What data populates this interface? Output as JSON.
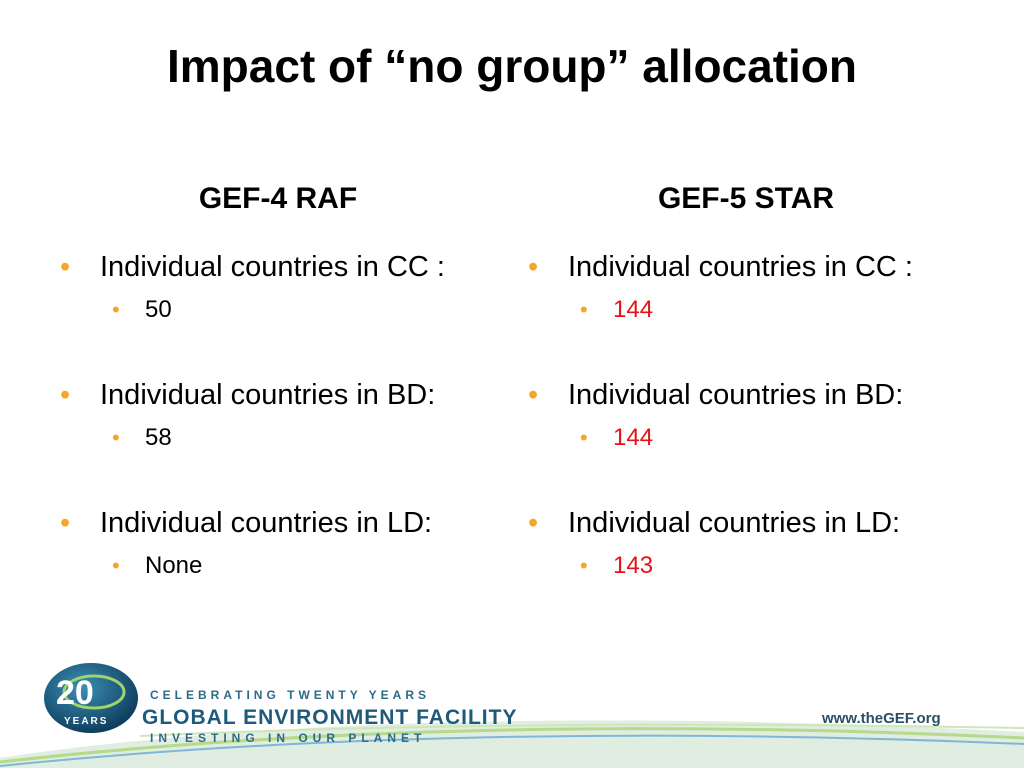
{
  "slide": {
    "title": "Impact of “no group” allocation"
  },
  "columns": [
    {
      "heading": "GEF-4 RAF",
      "items": [
        {
          "label": "Individual countries in CC :",
          "value": "50"
        },
        {
          "label": "Individual countries in BD:",
          "value": "58"
        },
        {
          "label": "Individual countries in LD:",
          "value": "None"
        }
      ]
    },
    {
      "heading": "GEF-5 STAR",
      "items": [
        {
          "label": "Individual countries in CC :",
          "value": "144"
        },
        {
          "label": "Individual countries in BD:",
          "value": "144"
        },
        {
          "label": "Individual countries in LD:",
          "value": "143"
        }
      ]
    }
  ],
  "bullet_glyph": "•",
  "colors": {
    "bullet": "#f5a623",
    "highlight_value": "#e8101a",
    "logo_blue": "#1e5a7a"
  },
  "footer": {
    "logo_number": "20",
    "logo_years": "YEARS",
    "tagline_top": "CELEBRATING TWENTY YEARS",
    "org_name": "GLOBAL ENVIRONMENT FACILITY",
    "tagline_bottom": "INVESTING IN OUR PLANET",
    "website": "www.theGEF.org"
  }
}
